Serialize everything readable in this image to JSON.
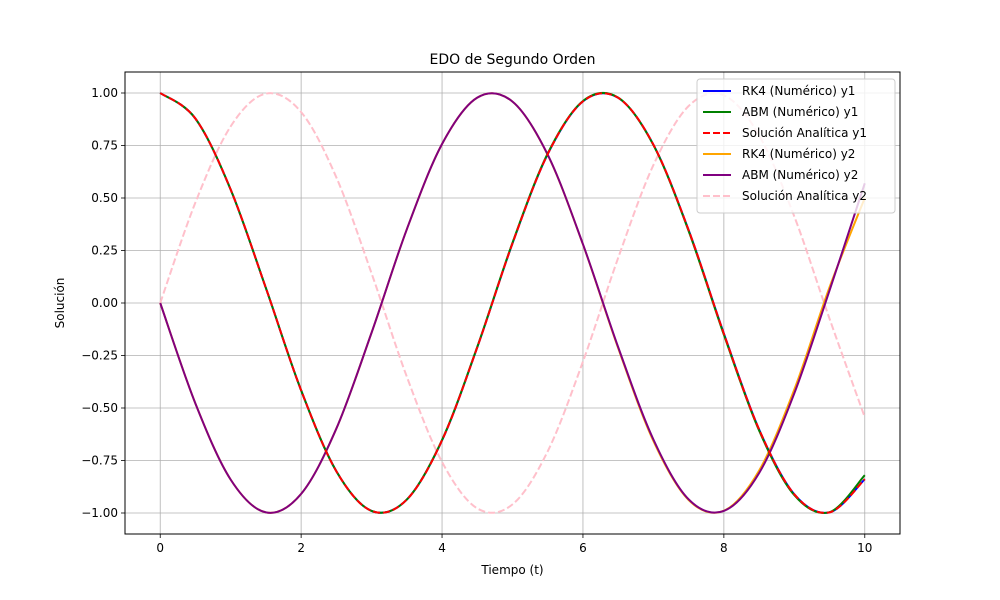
{
  "chart_data": {
    "type": "line",
    "title": "EDO de Segundo Orden",
    "xlabel": "Tiempo (t)",
    "ylabel": "Solución",
    "xlim": [
      -0.5,
      10.5
    ],
    "ylim": [
      -1.1,
      1.1
    ],
    "xticks": [
      0,
      2,
      4,
      6,
      8,
      10
    ],
    "xtick_labels": [
      "0",
      "2",
      "4",
      "6",
      "8",
      "10"
    ],
    "yticks": [
      -1.0,
      -0.75,
      -0.5,
      -0.25,
      0.0,
      0.25,
      0.5,
      0.75,
      1.0
    ],
    "ytick_labels": [
      "−1.00",
      "−0.75",
      "−0.50",
      "−0.25",
      "0.00",
      "0.25",
      "0.50",
      "0.75",
      "1.00"
    ],
    "grid": true,
    "legend_position": "top-right",
    "x": [
      0,
      0.5,
      1,
      1.5,
      2,
      2.5,
      3,
      3.5,
      4,
      4.5,
      5,
      5.5,
      6,
      6.5,
      7,
      7.5,
      8,
      8.5,
      9,
      9.5,
      10
    ],
    "series": [
      {
        "name": "RK4 (Numérico) y1",
        "color": "#0000ff",
        "dash": "solid",
        "values": [
          1.0,
          0.878,
          0.54,
          0.071,
          -0.416,
          -0.801,
          -0.99,
          -0.936,
          -0.654,
          -0.211,
          0.284,
          0.709,
          0.96,
          0.977,
          0.754,
          0.347,
          -0.145,
          -0.602,
          -0.911,
          -0.997,
          -0.839
        ]
      },
      {
        "name": "ABM (Numérico) y1",
        "color": "#008000",
        "dash": "solid",
        "values": [
          1.0,
          0.878,
          0.54,
          0.071,
          -0.416,
          -0.801,
          -0.99,
          -0.936,
          -0.652,
          -0.209,
          0.287,
          0.712,
          0.962,
          0.978,
          0.752,
          0.343,
          -0.151,
          -0.607,
          -0.915,
          -0.996,
          -0.82
        ]
      },
      {
        "name": "Solución Analítica y1",
        "color": "#ff0000",
        "dash": "dashed",
        "values": [
          1.0,
          0.878,
          0.54,
          0.071,
          -0.416,
          -0.801,
          -0.99,
          -0.936,
          -0.654,
          -0.211,
          0.284,
          0.709,
          0.96,
          0.977,
          0.754,
          0.347,
          -0.146,
          -0.602,
          -0.911,
          -0.997,
          -0.839
        ]
      },
      {
        "name": "RK4 (Numérico) y2",
        "color": "#ffa500",
        "dash": "solid",
        "values": [
          0.0,
          -0.479,
          -0.841,
          -0.997,
          -0.909,
          -0.598,
          -0.141,
          0.351,
          0.757,
          0.978,
          0.959,
          0.705,
          0.279,
          -0.215,
          -0.657,
          -0.938,
          -0.989,
          -0.798,
          -0.412,
          0.075,
          0.5
        ]
      },
      {
        "name": "ABM (Numérico) y2",
        "color": "#800080",
        "dash": "solid",
        "values": [
          0.0,
          -0.479,
          -0.841,
          -0.997,
          -0.909,
          -0.598,
          -0.141,
          0.351,
          0.757,
          0.978,
          0.959,
          0.706,
          0.28,
          -0.21,
          -0.65,
          -0.935,
          -0.99,
          -0.81,
          -0.43,
          0.06,
          0.57
        ]
      },
      {
        "name": "Solución Analítica y2",
        "color": "#ffc0cb",
        "dash": "dashed",
        "values": [
          0.0,
          0.479,
          0.841,
          0.997,
          0.909,
          0.598,
          0.141,
          -0.351,
          -0.757,
          -0.978,
          -0.959,
          -0.706,
          -0.279,
          0.215,
          0.657,
          0.938,
          0.989,
          0.798,
          0.412,
          -0.075,
          -0.544
        ]
      }
    ]
  }
}
